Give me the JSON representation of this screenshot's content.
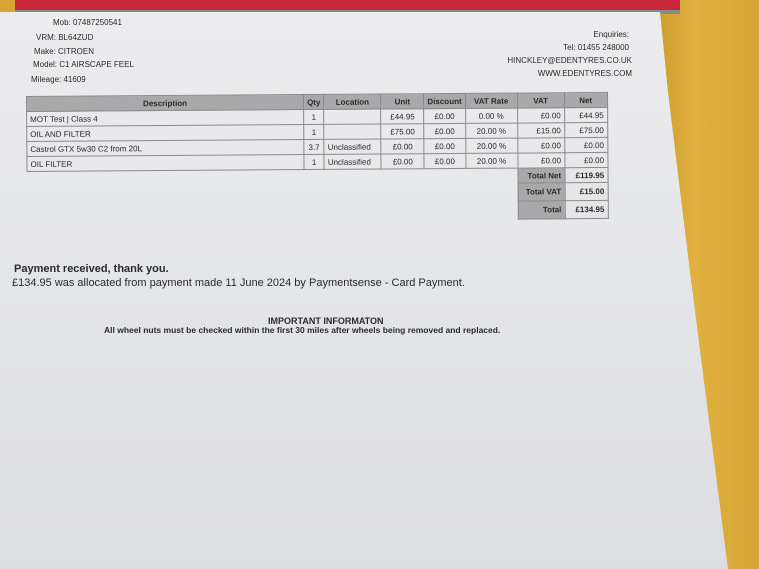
{
  "customer": {
    "mob": "Mob: 07487250541",
    "vrm": "VRM: BL64ZUD",
    "make": "Make: CITROEN",
    "model": "Model: C1 AIRSCAPE FEEL",
    "mileage": "Mileage: 41609"
  },
  "company": {
    "enquiries": "Enquiries:",
    "tel": "Tel: 01455 248000",
    "email": "HINCKLEY@EDENTYRES.CO.UK",
    "web": "WWW.EDENTYRES.COM"
  },
  "table": {
    "headers": [
      "Description",
      "Qty",
      "Location",
      "Unit",
      "Discount",
      "VAT Rate",
      "VAT",
      "Net"
    ],
    "rows": [
      [
        "MOT Test | Class 4",
        "1",
        "",
        "£44.95",
        "£0.00",
        "0.00 %",
        "£0.00",
        "£44.95"
      ],
      [
        "OIL AND FILTER",
        "1",
        "",
        "£75.00",
        "£0.00",
        "20.00 %",
        "£15.00",
        "£75.00"
      ],
      [
        "Castrol GTX 5w30 C2 from 20L",
        "3.7",
        "Unclassified",
        "£0.00",
        "£0.00",
        "20.00 %",
        "£0.00",
        "£0.00"
      ],
      [
        "OIL FILTER",
        "1",
        "Unclassified",
        "£0.00",
        "£0.00",
        "20.00 %",
        "£0.00",
        "£0.00"
      ]
    ],
    "totals": [
      {
        "label": "Total Net",
        "value": "£119.95"
      },
      {
        "label": "Total VAT",
        "value": "£15.00"
      },
      {
        "label": "Total",
        "value": "£134.95"
      }
    ]
  },
  "payment": {
    "heading": "Payment received, thank you.",
    "detail": "£134.95 was allocated from payment made 11 June 2024 by Paymentsense - Card Payment."
  },
  "notice": {
    "heading": "IMPORTANT INFORMATON",
    "text": "All wheel nuts must be checked within the first 30 miles after wheels being removed and replaced."
  }
}
